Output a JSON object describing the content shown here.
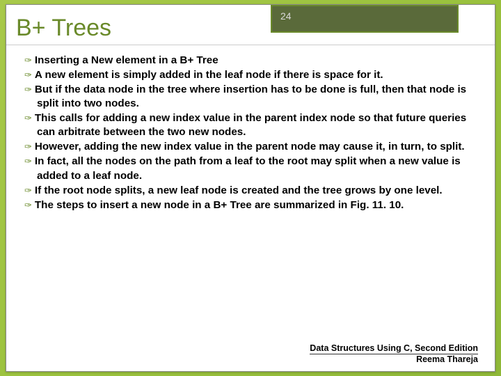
{
  "slide": {
    "title": "B+ Trees",
    "page_number": "24",
    "title_color": "#6a8a2a",
    "badge_bg": "#5a6a3a",
    "badge_border": "#6a8a2a",
    "background_gradient": [
      "#a8c94a",
      "#9bc23e",
      "#8fb838"
    ],
    "bullets": [
      "Inserting a New element in a B+ Tree",
      "A new element is simply added in the leaf node if there is space for it.",
      "But if the data node in the tree where insertion has to be done is full, then that node is split into two nodes.",
      "This calls for adding a new index value in the parent index node so that future queries can arbitrate between the two new nodes.",
      "However, adding the new index value in the parent node may cause it, in turn, to split.",
      "In fact, all the nodes on the path from a leaf to the root may split when a new value is added to a leaf node.",
      "If the root node splits, a new leaf node is created and the tree grows by one level.",
      "The steps to insert a new node in a B+ Tree are summarized in Fig. 11. 10."
    ],
    "footer_line1": "Data Structures Using C, Second Edition",
    "footer_line2": "Reema Thareja"
  }
}
